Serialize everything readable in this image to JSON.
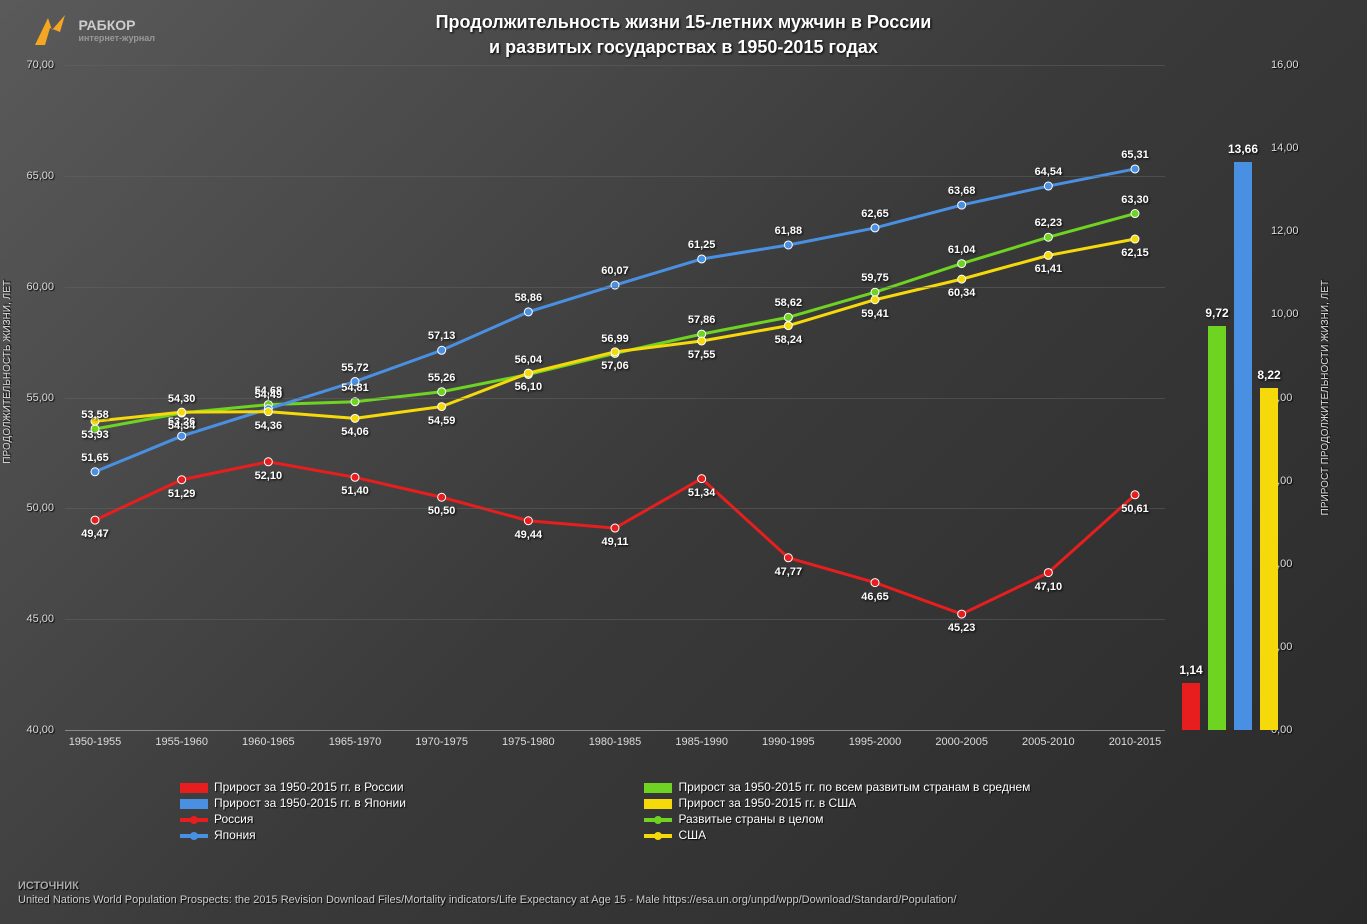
{
  "logo": {
    "name": "РАБКОР",
    "sub": "интернет-журнал"
  },
  "title_line1": "Продолжительность жизни 15-летних мужчин в России",
  "title_line2": "и развитых государствах в 1950-2015 годах",
  "chart": {
    "left_axis": {
      "label": "ПРОДОЛЖИТЕЛЬНОСТЬ ЖИЗНИ, ЛЕТ",
      "min": 40,
      "max": 70,
      "step": 5,
      "ticks": [
        "40,00",
        "45,00",
        "50,00",
        "55,00",
        "60,00",
        "65,00",
        "70,00"
      ]
    },
    "right_axis": {
      "label": "ПРИРОСТ ПРОДОЛЖИТЕЛЬНОСТИ ЖИЗНИ, ЛЕТ",
      "min": 0,
      "max": 16,
      "step": 2,
      "ticks": [
        "0,00",
        "2,00",
        "4,00",
        "6,00",
        "8,00",
        "10,00",
        "12,00",
        "14,00",
        "16,00"
      ]
    },
    "categories": [
      "1950-1955",
      "1955-1960",
      "1960-1965",
      "1965-1970",
      "1970-1975",
      "1975-1980",
      "1980-1985",
      "1985-1990",
      "1990-1995",
      "1995-2000",
      "2000-2005",
      "2005-2010",
      "2010-2015"
    ],
    "series_lines": [
      {
        "id": "russia",
        "color": "#e81e1e",
        "values": [
          49.47,
          51.29,
          52.1,
          51.4,
          50.5,
          49.44,
          49.11,
          51.34,
          47.77,
          46.65,
          45.23,
          47.1,
          50.61
        ],
        "labels": [
          "49,47",
          "51,29",
          "52,10",
          "51,40",
          "50,50",
          "49,44",
          "49,11",
          "51,34",
          "47,77",
          "46,65",
          "45,23",
          "47,10",
          "50,61"
        ],
        "label_side": "below"
      },
      {
        "id": "developed",
        "color": "#6ed321",
        "values": [
          53.58,
          54.3,
          54.68,
          54.81,
          55.26,
          56.04,
          56.99,
          57.86,
          58.62,
          59.75,
          61.04,
          62.23,
          63.3
        ],
        "labels": [
          "53,58",
          "54,30",
          "54,68",
          "54,81",
          "55,26",
          "56,04",
          "56,99",
          "57,86",
          "58,62",
          "59,75",
          "61,04",
          "62,23",
          "63,30"
        ],
        "label_side": "above"
      },
      {
        "id": "japan",
        "color": "#4a90e2",
        "values": [
          51.65,
          53.26,
          54.49,
          55.72,
          57.13,
          58.86,
          60.07,
          61.25,
          61.88,
          62.65,
          63.68,
          64.54,
          65.31
        ],
        "labels": [
          "51,65",
          "53,26",
          "54,49",
          "55,72",
          "57,13",
          "58,86",
          "60,07",
          "61,25",
          "61,88",
          "62,65",
          "63,68",
          "64,54",
          "65,31"
        ],
        "label_side": "above"
      },
      {
        "id": "usa",
        "color": "#f5d90a",
        "values": [
          53.93,
          54.34,
          54.36,
          54.06,
          54.59,
          56.1,
          57.06,
          57.55,
          58.24,
          59.41,
          60.34,
          61.41,
          62.15
        ],
        "labels": [
          "53,93",
          "54,34",
          "54,36",
          "54,06",
          "54,59",
          "56,10",
          "57,06",
          "57,55",
          "58,24",
          "59,41",
          "60,34",
          "61,41",
          "62,15"
        ],
        "label_side": "below"
      }
    ],
    "bars": [
      {
        "id": "russia-gain",
        "color": "#e81e1e",
        "value": 1.14,
        "label": "1,14"
      },
      {
        "id": "developed-gain",
        "color": "#6ed321",
        "value": 9.72,
        "label": "9,72"
      },
      {
        "id": "japan-gain",
        "color": "#4a90e2",
        "value": 13.66,
        "label": "13,66"
      },
      {
        "id": "usa-gain",
        "color": "#f5d90a",
        "value": 8.22,
        "label": "8,22"
      }
    ],
    "line_width": 3,
    "marker_radius": 4,
    "background": "#444444"
  },
  "legend": [
    {
      "type": "bar",
      "color": "#e81e1e",
      "text": "Прирост за 1950-2015 гг. в России",
      "col": 0
    },
    {
      "type": "bar",
      "color": "#6ed321",
      "text": "Прирост за 1950-2015 гг. по всем развитым странам в среднем",
      "col": 1
    },
    {
      "type": "bar",
      "color": "#4a90e2",
      "text": "Прирост за 1950-2015 гг. в Японии",
      "col": 0
    },
    {
      "type": "bar",
      "color": "#f5d90a",
      "text": "Прирост за 1950-2015 гг. в США",
      "col": 1
    },
    {
      "type": "line",
      "color": "#e81e1e",
      "text": "Россия",
      "col": 0
    },
    {
      "type": "line",
      "color": "#6ed321",
      "text": "Развитые страны в целом",
      "col": 1
    },
    {
      "type": "line",
      "color": "#4a90e2",
      "text": "Япония",
      "col": 0
    },
    {
      "type": "line",
      "color": "#f5d90a",
      "text": "США",
      "col": 1
    }
  ],
  "source": {
    "label": "ИСТОЧНИК",
    "text": "United Nations World Population Prospects: the 2015 Revision Download Files/Mortality indicators/Life Expectancy at Age 15 - Male https://esa.un.org/unpd/wpp/Download/Standard/Population/"
  }
}
